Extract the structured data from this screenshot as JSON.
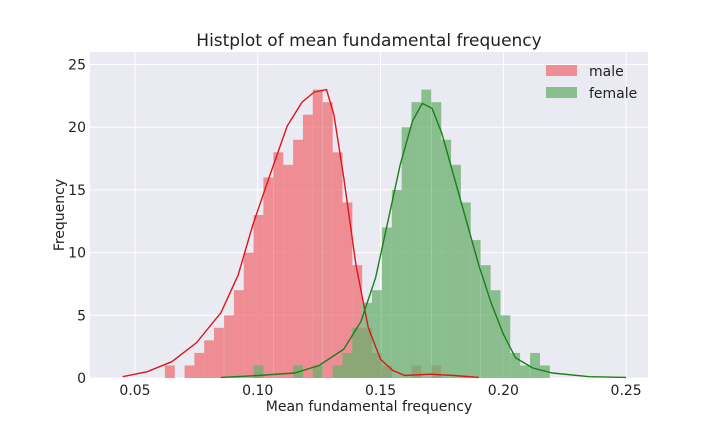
{
  "chart_data": {
    "type": "histogram",
    "title": "Histplot of mean fundamental frequency",
    "xlabel": "Mean fundamental frequency",
    "ylabel": "Frequency",
    "xlim": [
      0.0317,
      0.2589
    ],
    "ylim": [
      0,
      26
    ],
    "x_ticks": [
      0.05,
      0.1,
      0.15,
      0.2,
      0.25
    ],
    "x_tick_labels": [
      "0.05",
      "0.10",
      "0.15",
      "0.20",
      "0.25"
    ],
    "y_ticks": [
      0,
      5,
      10,
      15,
      20,
      25
    ],
    "y_tick_labels": [
      "0",
      "5",
      "10",
      "15",
      "20",
      "25"
    ],
    "grid": true,
    "legend_position": "top-right",
    "bin_width": 0.00402,
    "series": [
      {
        "name": "male",
        "color": "#ef6f74",
        "line_color": "#e0151a",
        "bin_starts": [
          0.0581,
          0.0622,
          0.0662,
          0.0702,
          0.0742,
          0.0782,
          0.0822,
          0.0863,
          0.0903,
          0.0943,
          0.0983,
          0.1023,
          0.1064,
          0.1104,
          0.1144,
          0.1184,
          0.1224,
          0.1265,
          0.1305,
          0.1345,
          0.1385,
          0.1425,
          0.1465,
          0.1506,
          0.1546,
          0.1586,
          0.1626,
          0.1666,
          0.1707
        ],
        "counts": [
          0,
          1,
          0,
          1,
          2,
          3,
          4,
          5,
          7,
          10,
          13,
          16,
          18,
          17,
          19,
          21,
          23,
          22,
          18,
          14,
          9,
          4,
          2,
          1,
          0,
          0,
          1,
          0,
          1
        ],
        "kde_x": [
          0.045,
          0.055,
          0.065,
          0.075,
          0.085,
          0.092,
          0.098,
          0.105,
          0.112,
          0.118,
          0.123,
          0.128,
          0.131,
          0.135,
          0.14,
          0.145,
          0.15,
          0.155,
          0.16,
          0.17,
          0.18,
          0.19
        ],
        "kde_y": [
          0.1,
          0.5,
          1.3,
          2.8,
          5.2,
          8.2,
          12.2,
          16.2,
          20.1,
          22.0,
          22.8,
          23.0,
          21.0,
          16.0,
          9.0,
          4.0,
          1.5,
          0.6,
          0.2,
          0.3,
          0.2,
          0.05
        ]
      },
      {
        "name": "female",
        "color": "#6aaf6c",
        "line_color": "#1a7f1a",
        "bin_starts": [
          0.0983,
          0.1023,
          0.1064,
          0.1104,
          0.1144,
          0.1184,
          0.1224,
          0.1265,
          0.1305,
          0.1345,
          0.1385,
          0.1425,
          0.1465,
          0.1506,
          0.1546,
          0.1586,
          0.1626,
          0.1666,
          0.1707,
          0.1747,
          0.1787,
          0.1827,
          0.1867,
          0.1908,
          0.1948,
          0.1988,
          0.2028,
          0.2068,
          0.2109,
          0.2149,
          0.2189
        ],
        "counts": [
          1,
          0,
          0,
          0,
          1,
          0,
          1,
          0,
          1,
          2,
          4,
          6,
          7,
          12,
          15,
          20,
          22,
          23,
          22,
          19,
          17,
          14,
          11,
          9,
          7,
          5,
          2,
          1,
          2,
          1,
          0
        ],
        "kde_x": [
          0.085,
          0.1,
          0.115,
          0.125,
          0.135,
          0.142,
          0.148,
          0.153,
          0.158,
          0.163,
          0.167,
          0.171,
          0.175,
          0.18,
          0.185,
          0.19,
          0.195,
          0.2,
          0.205,
          0.212,
          0.22,
          0.235,
          0.25
        ],
        "kde_y": [
          0.05,
          0.2,
          0.4,
          1.0,
          2.3,
          4.5,
          8.0,
          12.5,
          17.0,
          20.5,
          21.9,
          21.5,
          19.5,
          16.0,
          12.5,
          9.0,
          6.0,
          3.5,
          1.6,
          0.8,
          0.4,
          0.1,
          0.05
        ]
      }
    ]
  }
}
